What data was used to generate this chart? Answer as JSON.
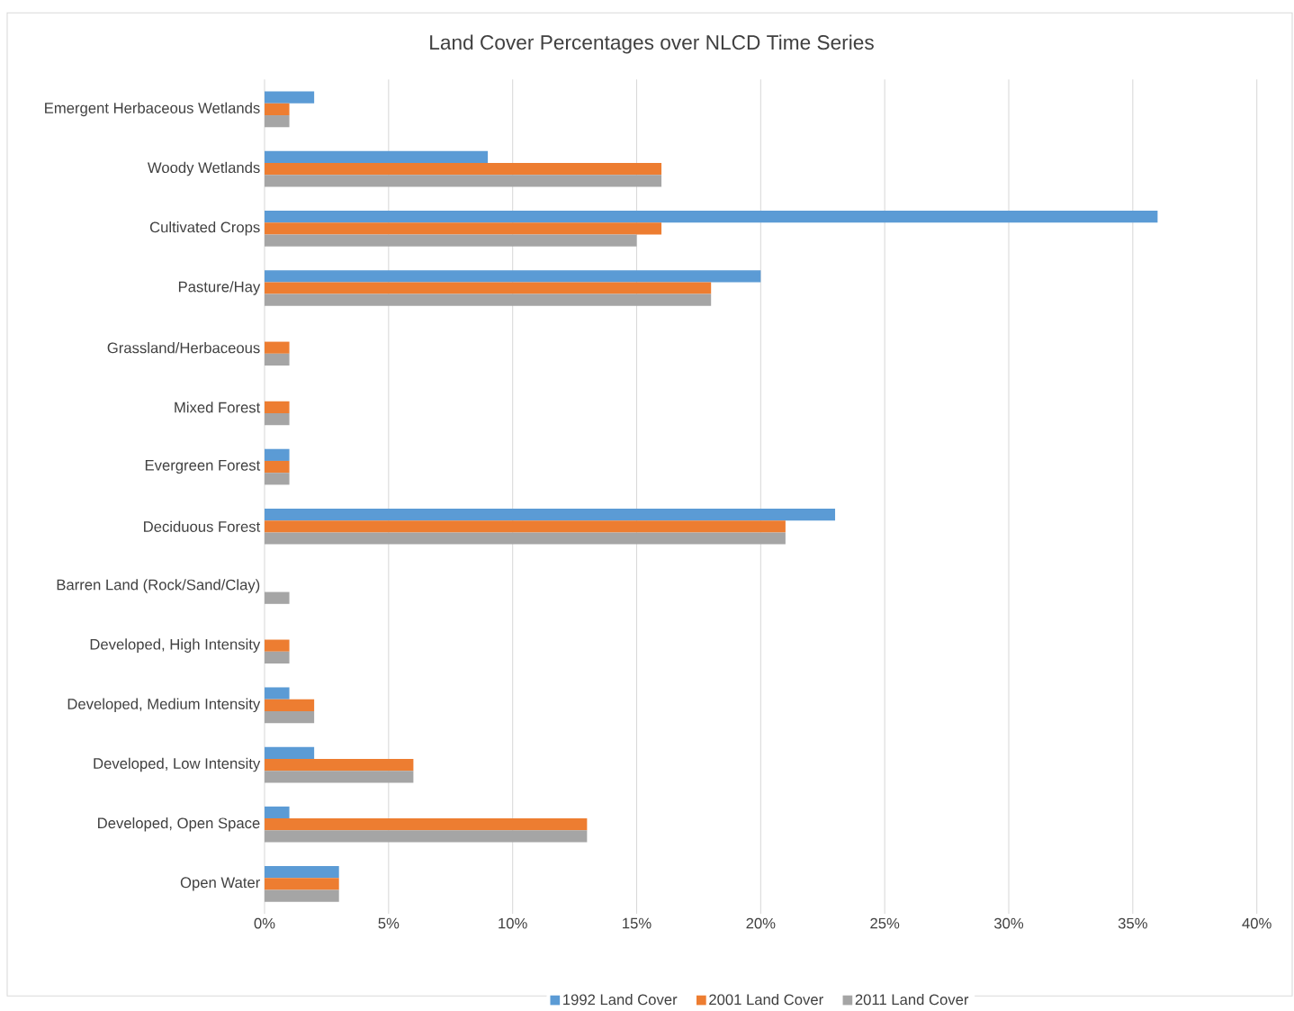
{
  "chart_data": {
    "type": "bar",
    "orientation": "horizontal",
    "title": "Land Cover Percentages over NLCD Time Series",
    "categories": [
      "Emergent Herbaceous Wetlands",
      "Woody Wetlands",
      "Cultivated Crops",
      "Pasture/Hay",
      "Grassland/Herbaceous",
      "Mixed Forest",
      "Evergreen Forest",
      "Deciduous Forest",
      "Barren Land (Rock/Sand/Clay)",
      "Developed, High Intensity",
      "Developed, Medium Intensity",
      "Developed, Low Intensity",
      "Developed, Open Space",
      "Open Water"
    ],
    "series": [
      {
        "name": "1992 Land Cover",
        "color": "#5b9bd5",
        "values": [
          2,
          9,
          36,
          20,
          0,
          0,
          1,
          23,
          0,
          0,
          1,
          2,
          1,
          3
        ]
      },
      {
        "name": "2001 Land Cover",
        "color": "#ed7d31",
        "values": [
          1,
          16,
          16,
          18,
          1,
          1,
          1,
          21,
          0,
          1,
          2,
          6,
          13,
          3
        ]
      },
      {
        "name": "2011 Land Cover",
        "color": "#a5a5a5",
        "values": [
          1,
          16,
          15,
          18,
          1,
          1,
          1,
          21,
          1,
          1,
          2,
          6,
          13,
          3
        ]
      }
    ],
    "xlim": [
      0,
      40
    ],
    "xticks": [
      {
        "value": 0,
        "label": "0%"
      },
      {
        "value": 5,
        "label": "5%"
      },
      {
        "value": 10,
        "label": "10%"
      },
      {
        "value": 15,
        "label": "15%"
      },
      {
        "value": 20,
        "label": "20%"
      },
      {
        "value": 25,
        "label": "25%"
      },
      {
        "value": 30,
        "label": "30%"
      },
      {
        "value": 35,
        "label": "35%"
      },
      {
        "value": 40,
        "label": "40%"
      }
    ],
    "grid": "x",
    "legend": "bottom"
  }
}
